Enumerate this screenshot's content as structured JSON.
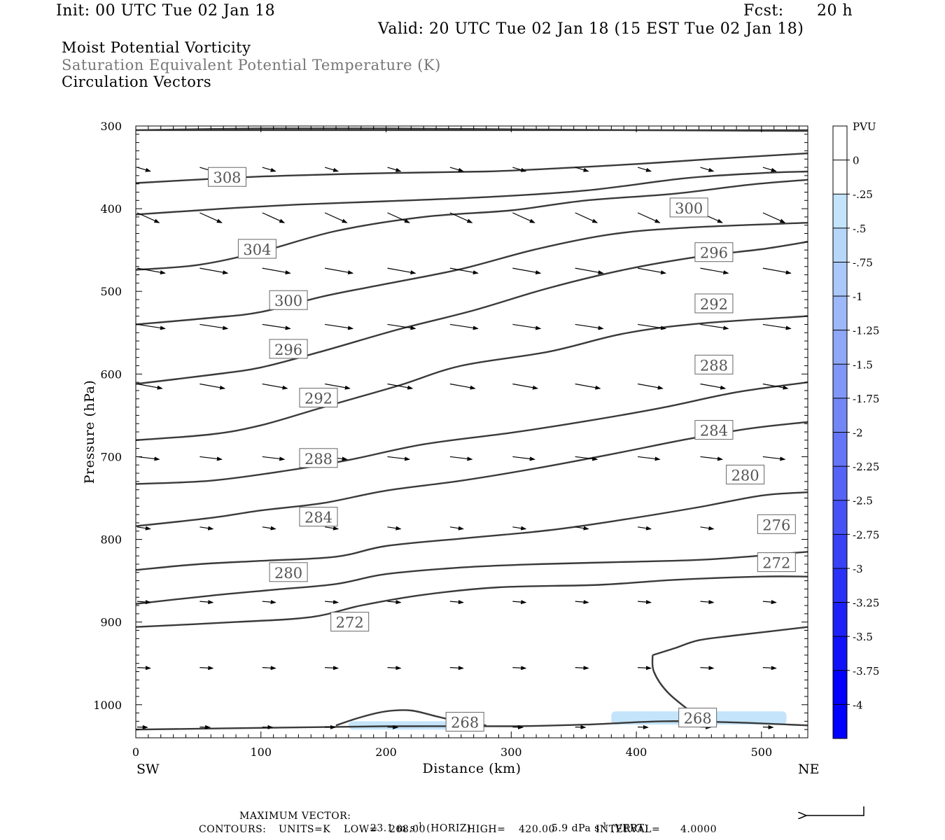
{
  "header": {
    "init": "Init: 00 UTC Tue 02 Jan 18",
    "fcst_label": "Fcst:",
    "fcst_value": "20 h",
    "valid": "Valid: 20 UTC Tue 02 Jan 18 (15 EST Tue 02 Jan 18)"
  },
  "fields": [
    "Moist Potential Vorticity",
    "Saturation Equivalent Potential Temperature (K)",
    "Circulation Vectors"
  ],
  "footer": {
    "max_vector_label": "MAXIMUM VECTOR:",
    "max_vector_horiz": "23.1 m s",
    "horiz_tag": "(HORIZ)",
    "max_vector_vert": "5.9 dPa s",
    "vert_tag": "(VERT)",
    "exponent": "-1",
    "contours_label": "CONTOURS:",
    "units": "UNITS=K",
    "low": "LOW=",
    "low_value": "268.00",
    "high": "HIGH=",
    "high_value": "420.00",
    "interval": "INTERVAL=",
    "interval_value": "4.0000"
  },
  "chart_data": {
    "type": "cross-section",
    "xlabel": "Distance (km)",
    "ylabel": "Pressure (hPa)",
    "xlim": [
      0,
      537
    ],
    "ylim": [
      300,
      1040
    ],
    "x_ticks": [
      0,
      100,
      200,
      300,
      400,
      500
    ],
    "y_ticks": [
      300,
      400,
      500,
      600,
      700,
      800,
      900,
      1000
    ],
    "x_endpoints": {
      "left": "SW",
      "right": "NE"
    },
    "colorbar": {
      "title": "PVU",
      "range": [
        0.25,
        -4.25
      ],
      "labels": [
        "0",
        "-.25",
        "-.5",
        "-.75",
        "-1",
        "-1.25",
        "-1.5",
        "-1.75",
        "-2",
        "-2.25",
        "-2.5",
        "-2.75",
        "-3",
        "-3.25",
        "-3.5",
        "-3.75",
        "-4"
      ],
      "colors_top_to_bottom": [
        "#ffffff",
        "#ffffff",
        "#c4e4fb",
        "#b7d7fa",
        "#aac8f9",
        "#9cb8f8",
        "#8ea7f7",
        "#8097f7",
        "#7286f6",
        "#6475f6",
        "#5563f6",
        "#4652f6",
        "#3841f6",
        "#2a31f6",
        "#1c22f7",
        "#0f12f8",
        "#0000fb",
        "#0000ff"
      ]
    },
    "contour_series": [
      {
        "value": 308,
        "label_at": [
          73,
          362
        ],
        "points": [
          [
            0,
            369
          ],
          [
            60,
            364
          ],
          [
            120,
            360
          ],
          [
            200,
            357
          ],
          [
            280,
            355
          ],
          [
            340,
            351
          ],
          [
            400,
            346
          ],
          [
            460,
            340
          ],
          [
            537,
            333
          ]
        ]
      },
      {
        "value": 304,
        "label_at": [
          97,
          449
        ],
        "points": [
          [
            0,
            407
          ],
          [
            50,
            402
          ],
          [
            80,
            399
          ],
          [
            130,
            395
          ],
          [
            200,
            391
          ],
          [
            280,
            386
          ],
          [
            360,
            378
          ],
          [
            440,
            363
          ],
          [
            500,
            357
          ],
          [
            537,
            355
          ]
        ]
      },
      {
        "value": 300,
        "label_at": [
          122,
          511
        ],
        "points": [
          [
            0,
            474
          ],
          [
            50,
            468
          ],
          [
            100,
            452
          ],
          [
            160,
            427
          ],
          [
            230,
            410
          ],
          [
            300,
            402
          ],
          [
            360,
            390
          ],
          [
            430,
            382
          ],
          [
            490,
            371
          ],
          [
            537,
            365
          ]
        ],
        "extra_label": [
          442,
          399
        ]
      },
      {
        "value": 296,
        "label_at": [
          122,
          570
        ],
        "points": [
          [
            0,
            540
          ],
          [
            60,
            532
          ],
          [
            100,
            525
          ],
          [
            150,
            506
          ],
          [
            200,
            491
          ],
          [
            260,
            473
          ],
          [
            320,
            449
          ],
          [
            380,
            431
          ],
          [
            440,
            423
          ],
          [
            537,
            417
          ]
        ],
        "extra_label": [
          462,
          453
        ]
      },
      {
        "value": 292,
        "label_at": [
          146,
          629
        ],
        "points": [
          [
            0,
            612
          ],
          [
            60,
            601
          ],
          [
            100,
            592
          ],
          [
            150,
            572
          ],
          [
            210,
            546
          ],
          [
            270,
            523
          ],
          [
            330,
            496
          ],
          [
            390,
            474
          ],
          [
            450,
            458
          ],
          [
            500,
            449
          ],
          [
            537,
            440
          ]
        ],
        "extra_label": [
          462,
          515
        ]
      },
      {
        "value": 288,
        "label_at": [
          146,
          702
        ],
        "points": [
          [
            0,
            680
          ],
          [
            60,
            673
          ],
          [
            100,
            662
          ],
          [
            150,
            640
          ],
          [
            210,
            614
          ],
          [
            260,
            590
          ],
          [
            330,
            573
          ],
          [
            390,
            551
          ],
          [
            450,
            539
          ],
          [
            537,
            530
          ]
        ],
        "extra_label": [
          462,
          589
        ]
      },
      {
        "value": 284,
        "label_at": [
          146,
          773
        ],
        "points": [
          [
            0,
            733
          ],
          [
            60,
            729
          ],
          [
            120,
            717
          ],
          [
            170,
            704
          ],
          [
            230,
            685
          ],
          [
            300,
            671
          ],
          [
            360,
            657
          ],
          [
            420,
            641
          ],
          [
            480,
            622
          ],
          [
            537,
            610
          ]
        ],
        "extra_label": [
          462,
          668
        ]
      },
      {
        "value": 280,
        "label_at": [
          122,
          840
        ],
        "points": [
          [
            0,
            784
          ],
          [
            60,
            774
          ],
          [
            100,
            765
          ],
          [
            150,
            756
          ],
          [
            200,
            741
          ],
          [
            260,
            729
          ],
          [
            320,
            714
          ],
          [
            380,
            697
          ],
          [
            440,
            679
          ],
          [
            490,
            666
          ],
          [
            537,
            658
          ]
        ],
        "extra_label": [
          487,
          722
        ]
      },
      {
        "value": 276,
        "points": [
          [
            0,
            837
          ],
          [
            50,
            830
          ],
          [
            100,
            826
          ],
          [
            160,
            821
          ],
          [
            200,
            808
          ],
          [
            260,
            799
          ],
          [
            330,
            789
          ],
          [
            390,
            776
          ],
          [
            450,
            761
          ],
          [
            500,
            747
          ],
          [
            537,
            743
          ]
        ],
        "extra_label": [
          512,
          782
        ]
      },
      {
        "value": 272,
        "label_at": [
          171,
          900
        ],
        "points": [
          [
            0,
            878
          ],
          [
            60,
            868
          ],
          [
            110,
            861
          ],
          [
            160,
            854
          ],
          [
            200,
            842
          ],
          [
            260,
            834
          ],
          [
            320,
            830
          ],
          [
            400,
            827
          ],
          [
            460,
            824
          ],
          [
            537,
            815
          ]
        ],
        "extra_label": [
          512,
          828
        ]
      },
      {
        "value": 272,
        "points": [
          [
            0,
            906
          ],
          [
            80,
            900
          ],
          [
            140,
            894
          ],
          [
            180,
            880
          ],
          [
            230,
            867
          ],
          [
            290,
            858
          ],
          [
            370,
            855
          ],
          [
            430,
            849
          ],
          [
            500,
            845
          ],
          [
            537,
            845
          ]
        ]
      },
      {
        "value": 268,
        "points": [
          [
            160,
            1025
          ],
          [
            180,
            1015
          ],
          [
            200,
            1008
          ],
          [
            220,
            1007
          ],
          [
            240,
            1014
          ],
          [
            260,
            1021
          ],
          [
            280,
            1025
          ]
        ],
        "extra_label": [
          263,
          1021
        ]
      },
      {
        "value": 268,
        "points": [
          [
            0,
            1030
          ],
          [
            100,
            1028
          ],
          [
            200,
            1026
          ],
          [
            300,
            1026
          ],
          [
            360,
            1024
          ],
          [
            420,
            1020
          ],
          [
            470,
            1021
          ],
          [
            537,
            1025
          ]
        ],
        "extra_label": [
          449,
          1016
        ]
      },
      {
        "value": 268,
        "points": [
          [
            413,
            940
          ],
          [
            414,
            960
          ],
          [
            425,
            985
          ],
          [
            445,
            1010
          ],
          [
            450,
            1015
          ]
        ]
      },
      {
        "value": 268,
        "points": [
          [
            413,
            940
          ],
          [
            430,
            932
          ],
          [
            450,
            922
          ],
          [
            480,
            916
          ],
          [
            537,
            906
          ]
        ]
      },
      {
        "value": 304,
        "points": [
          [
            0,
            305
          ],
          [
            100,
            303
          ],
          [
            200,
            303
          ],
          [
            300,
            304
          ],
          [
            400,
            305
          ],
          [
            537,
            306
          ]
        ]
      },
      {
        "value": 308,
        "points": [
          [
            0,
            305
          ],
          [
            537,
            305
          ]
        ]
      }
    ],
    "pv_shading": [
      {
        "pvu": -0.25,
        "x_range": [
          170,
          250
        ],
        "p_range": [
          1020,
          1030
        ]
      },
      {
        "pvu": -0.25,
        "x_range": [
          380,
          520
        ],
        "p_range": [
          1008,
          1024
        ]
      }
    ],
    "vector_rows": [
      {
        "p": 350,
        "u_scale": 0.45,
        "tilt": 0.3
      },
      {
        "p": 405,
        "u_scale": 0.75,
        "tilt": 0.45
      },
      {
        "p": 472,
        "u_scale": 0.95,
        "tilt": 0.18
      },
      {
        "p": 540,
        "u_scale": 0.95,
        "tilt": 0.15
      },
      {
        "p": 612,
        "u_scale": 0.85,
        "tilt": 0.18
      },
      {
        "p": 700,
        "u_scale": 0.75,
        "tilt": 0.12
      },
      {
        "p": 785,
        "u_scale": 0.45,
        "tilt": 0.15
      },
      {
        "p": 875,
        "u_scale": 0.45,
        "tilt": 0.08
      },
      {
        "p": 955,
        "u_scale": 0.45,
        "tilt": 0.05
      },
      {
        "p": 1027,
        "u_scale": 0.35,
        "tilt": 0.03
      }
    ],
    "vector_x": [
      0,
      50,
      100,
      150,
      200,
      250,
      300,
      350,
      400,
      450,
      500
    ]
  }
}
